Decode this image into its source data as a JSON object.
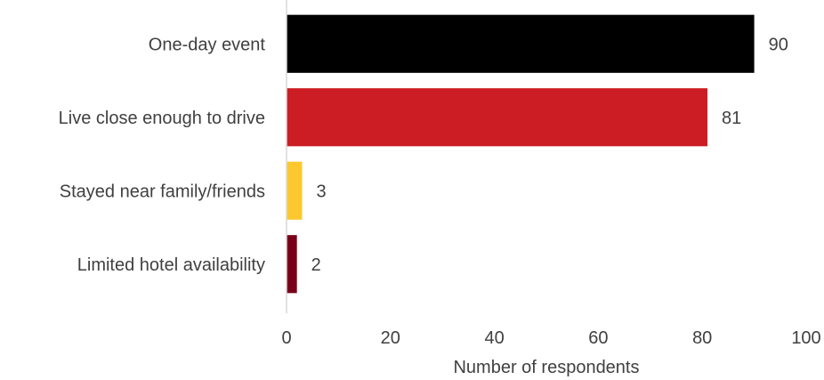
{
  "chart_data": {
    "type": "bar",
    "orientation": "horizontal",
    "categories": [
      "One-day event",
      "Live close enough to drive",
      "Stayed near family/friends",
      "Limited hotel availability"
    ],
    "values": [
      90,
      81,
      3,
      2
    ],
    "colors": [
      "#000000",
      "#cc1c24",
      "#fdc82f",
      "#7a0019"
    ],
    "xlabel": "Number of respondents",
    "ylabel": "",
    "title": "",
    "xlim": [
      0,
      100
    ],
    "xticks": [
      0,
      20,
      40,
      60,
      80,
      100
    ],
    "grid": false,
    "legend": "none",
    "data_labels": [
      "90",
      "81",
      "3",
      "2"
    ]
  }
}
